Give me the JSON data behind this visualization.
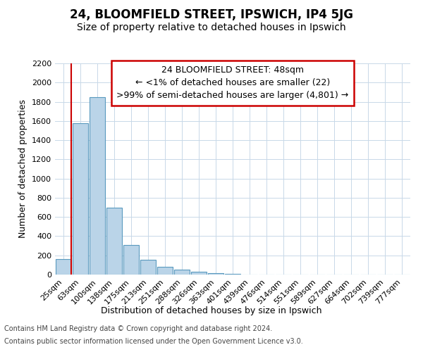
{
  "title": "24, BLOOMFIELD STREET, IPSWICH, IP4 5JG",
  "subtitle": "Size of property relative to detached houses in Ipswich",
  "xlabel": "Distribution of detached houses by size in Ipswich",
  "ylabel": "Number of detached properties",
  "categories": [
    "25sqm",
    "63sqm",
    "100sqm",
    "138sqm",
    "175sqm",
    "213sqm",
    "251sqm",
    "288sqm",
    "326sqm",
    "363sqm",
    "401sqm",
    "439sqm",
    "476sqm",
    "514sqm",
    "551sqm",
    "589sqm",
    "627sqm",
    "664sqm",
    "702sqm",
    "739sqm",
    "777sqm"
  ],
  "values": [
    160,
    1580,
    1850,
    700,
    310,
    155,
    80,
    50,
    30,
    12,
    5,
    3,
    2,
    2,
    1,
    1,
    1,
    1,
    1,
    1,
    0
  ],
  "bar_color": "#bad4e8",
  "bar_edge_color": "#5a9abf",
  "highlight_color": "#cc0000",
  "red_line_after_index": 0,
  "annotation_lines": [
    "24 BLOOMFIELD STREET: 48sqm",
    "← <1% of detached houses are smaller (22)",
    ">99% of semi-detached houses are larger (4,801) →"
  ],
  "annotation_box_color": "#ffffff",
  "annotation_box_edge_color": "#cc0000",
  "ylim": [
    0,
    2200
  ],
  "yticks": [
    0,
    200,
    400,
    600,
    800,
    1000,
    1200,
    1400,
    1600,
    1800,
    2000,
    2200
  ],
  "footer_line1": "Contains HM Land Registry data © Crown copyright and database right 2024.",
  "footer_line2": "Contains public sector information licensed under the Open Government Licence v3.0.",
  "title_fontsize": 12,
  "subtitle_fontsize": 10,
  "axis_label_fontsize": 9,
  "tick_fontsize": 8,
  "annotation_fontsize": 9,
  "footer_fontsize": 7,
  "background_color": "#ffffff",
  "grid_color": "#c8d8e8"
}
